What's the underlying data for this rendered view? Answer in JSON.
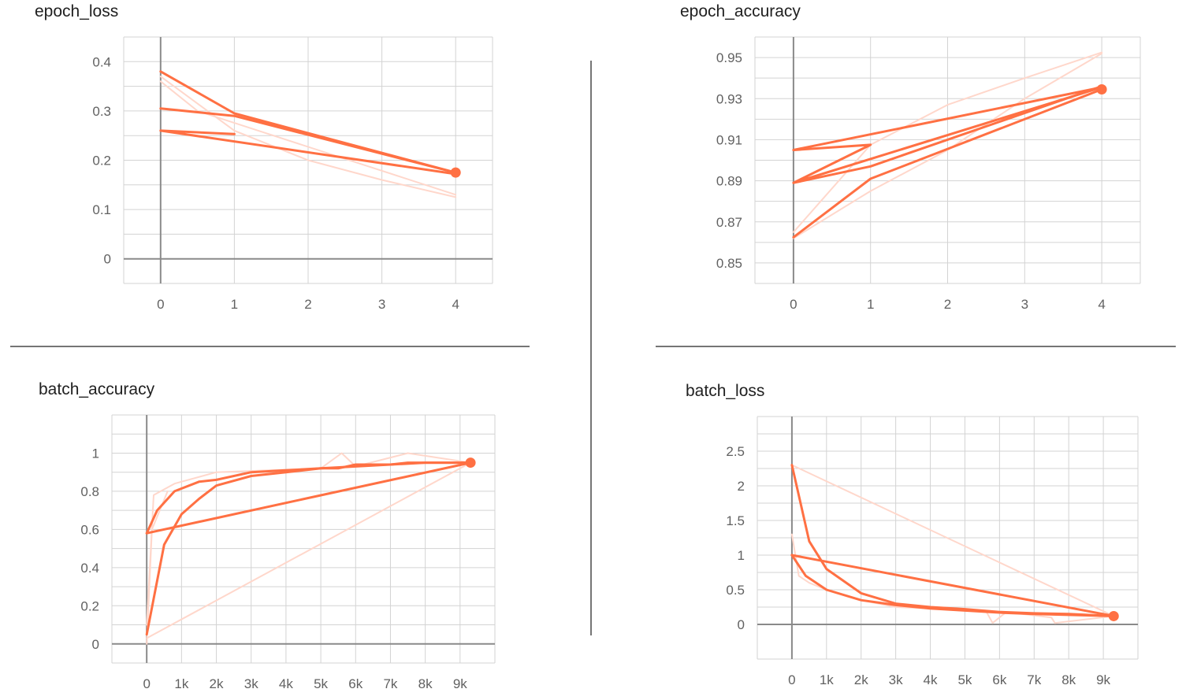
{
  "colors": {
    "accent": "#ff7043",
    "accent_light": "#ffd7cb",
    "grid": "#d3d3d3",
    "axis": "#8a8a8a"
  },
  "chart_data": [
    {
      "id": "epoch_loss",
      "type": "line",
      "title": "epoch_loss",
      "xlim": [
        -0.5,
        4.5
      ],
      "ylim": [
        -0.05,
        0.45
      ],
      "xticks": [
        0,
        1,
        2,
        3,
        4
      ],
      "xtick_labels": [
        "0",
        "1",
        "2",
        "3",
        "4"
      ],
      "yticks": [
        0,
        0.1,
        0.2,
        0.3,
        0.4
      ],
      "ytick_labels": [
        "0",
        "0.1",
        "0.2",
        "0.3",
        "0.4"
      ],
      "minor_yticks": [
        -0.05,
        0.05,
        0.15,
        0.25,
        0.35,
        0.45
      ],
      "grid": true,
      "series": [
        {
          "kind": "smoothed",
          "x": [
            0,
            1,
            4
          ],
          "y": [
            0.38,
            0.295,
            0.175
          ]
        },
        {
          "kind": "smoothed",
          "x": [
            0,
            1,
            4
          ],
          "y": [
            0.305,
            0.29,
            0.175
          ]
        },
        {
          "kind": "smoothed",
          "x": [
            0,
            1,
            0,
            4
          ],
          "y": [
            0.26,
            0.253,
            0.26,
            0.172
          ]
        },
        {
          "kind": "raw",
          "x": [
            0,
            1,
            2,
            3,
            4
          ],
          "y": [
            0.37,
            0.26,
            0.2,
            0.16,
            0.125
          ]
        },
        {
          "kind": "raw",
          "x": [
            0,
            0.5,
            4
          ],
          "y": [
            0.36,
            0.3,
            0.13
          ]
        }
      ],
      "end_marker": {
        "x": 4,
        "y": 0.175
      }
    },
    {
      "id": "epoch_accuracy",
      "type": "line",
      "title": "epoch_accuracy",
      "xlim": [
        -0.5,
        4.5
      ],
      "ylim": [
        0.84,
        0.96
      ],
      "xticks": [
        0,
        1,
        2,
        3,
        4
      ],
      "xtick_labels": [
        "0",
        "1",
        "2",
        "3",
        "4"
      ],
      "yticks": [
        0.85,
        0.87,
        0.89,
        0.91,
        0.93,
        0.95
      ],
      "ytick_labels": [
        "0.85",
        "0.87",
        "0.89",
        "0.91",
        "0.93",
        "0.95"
      ],
      "minor_yticks": [
        0.84,
        0.86,
        0.88,
        0.9,
        0.92,
        0.94,
        0.96
      ],
      "grid": true,
      "series": [
        {
          "kind": "smoothed",
          "x": [
            0,
            1,
            0,
            4
          ],
          "y": [
            0.905,
            0.9075,
            0.889,
            0.9355
          ]
        },
        {
          "kind": "smoothed",
          "x": [
            0,
            4
          ],
          "y": [
            0.905,
            0.9355
          ]
        },
        {
          "kind": "smoothed",
          "x": [
            0,
            1,
            4
          ],
          "y": [
            0.8625,
            0.891,
            0.9345
          ]
        },
        {
          "kind": "smoothed",
          "x": [
            0,
            1,
            4
          ],
          "y": [
            0.889,
            0.897,
            0.936
          ]
        },
        {
          "kind": "raw",
          "x": [
            0,
            1,
            2,
            3,
            4
          ],
          "y": [
            0.865,
            0.9075,
            0.927,
            0.94,
            0.9525
          ]
        },
        {
          "kind": "raw",
          "x": [
            0,
            1,
            2,
            3,
            4
          ],
          "y": [
            0.862,
            0.885,
            0.905,
            0.93,
            0.952
          ]
        }
      ],
      "end_marker": {
        "x": 4,
        "y": 0.9345
      }
    },
    {
      "id": "batch_accuracy",
      "type": "line",
      "title": "batch_accuracy",
      "xlim": [
        -1000,
        10000
      ],
      "ylim": [
        -0.1,
        1.2
      ],
      "xticks": [
        0,
        1000,
        2000,
        3000,
        4000,
        5000,
        6000,
        7000,
        8000,
        9000
      ],
      "xtick_labels": [
        "0",
        "1k",
        "2k",
        "3k",
        "4k",
        "5k",
        "6k",
        "7k",
        "8k",
        "9k"
      ],
      "yticks": [
        0,
        0.2,
        0.4,
        0.6,
        0.8,
        1
      ],
      "ytick_labels": [
        "0",
        "0.2",
        "0.4",
        "0.6",
        "0.8",
        "1"
      ],
      "minor_yticks": [
        -0.1,
        0.1,
        0.3,
        0.5,
        0.7,
        0.9,
        1.1,
        1.2
      ],
      "grid": true,
      "series": [
        {
          "kind": "smoothed",
          "x": [
            0,
            500,
            1000,
            1500,
            2000,
            3000,
            4000,
            5000,
            6000,
            7000,
            7500,
            9300
          ],
          "y": [
            0.05,
            0.52,
            0.68,
            0.76,
            0.83,
            0.88,
            0.9,
            0.92,
            0.93,
            0.94,
            0.95,
            0.95
          ]
        },
        {
          "kind": "smoothed",
          "x": [
            0,
            300,
            800,
            1500,
            2000,
            3000,
            4000,
            5000,
            5500,
            6000,
            7000,
            8000,
            9300
          ],
          "y": [
            0.58,
            0.7,
            0.8,
            0.85,
            0.86,
            0.9,
            0.91,
            0.92,
            0.92,
            0.94,
            0.94,
            0.95,
            0.95
          ]
        },
        {
          "kind": "smoothed",
          "x": [
            0,
            9300
          ],
          "y": [
            0.58,
            0.95
          ]
        },
        {
          "kind": "raw",
          "x": [
            0,
            200,
            800,
            2000,
            3500,
            5000,
            5600,
            6000,
            7500,
            9300
          ],
          "y": [
            0.1,
            0.78,
            0.84,
            0.9,
            0.91,
            0.92,
            1.0,
            0.93,
            1.0,
            0.95
          ]
        },
        {
          "kind": "raw",
          "x": [
            0,
            9300
          ],
          "y": [
            0.03,
            0.95
          ]
        },
        {
          "kind": "raw",
          "x": [
            0,
            150,
            600
          ],
          "y": [
            0.0,
            0.6,
            0.8
          ]
        }
      ],
      "end_marker": {
        "x": 9300,
        "y": 0.95
      }
    },
    {
      "id": "batch_loss",
      "type": "line",
      "title": "batch_loss",
      "xlim": [
        -1000,
        10000
      ],
      "ylim": [
        -0.5,
        3
      ],
      "xticks": [
        0,
        1000,
        2000,
        3000,
        4000,
        5000,
        6000,
        7000,
        8000,
        9000
      ],
      "xtick_labels": [
        "0",
        "1k",
        "2k",
        "3k",
        "4k",
        "5k",
        "6k",
        "7k",
        "8k",
        "9k"
      ],
      "yticks": [
        0,
        0.5,
        1,
        1.5,
        2,
        2.5
      ],
      "ytick_labels": [
        "0",
        "0.5",
        "1",
        "1.5",
        "2",
        "2.5"
      ],
      "minor_yticks": [
        -0.5,
        0.25,
        0.75,
        1.25,
        1.75,
        2.25,
        2.75,
        3
      ],
      "grid": true,
      "series": [
        {
          "kind": "smoothed",
          "x": [
            0,
            500,
            1000,
            2000,
            3000,
            4000,
            5000,
            6000,
            7000,
            8000,
            9300
          ],
          "y": [
            2.3,
            1.2,
            0.8,
            0.45,
            0.3,
            0.25,
            0.22,
            0.18,
            0.16,
            0.15,
            0.12
          ]
        },
        {
          "kind": "smoothed",
          "x": [
            0,
            400,
            1000,
            2000,
            3000,
            4000,
            5000,
            6000,
            7000,
            9300
          ],
          "y": [
            1.0,
            0.7,
            0.5,
            0.35,
            0.28,
            0.23,
            0.2,
            0.17,
            0.15,
            0.12
          ]
        },
        {
          "kind": "smoothed",
          "x": [
            0,
            9300
          ],
          "y": [
            1.0,
            0.12
          ]
        },
        {
          "kind": "raw",
          "x": [
            0,
            9300
          ],
          "y": [
            2.3,
            0.12
          ]
        },
        {
          "kind": "raw",
          "x": [
            0,
            200,
            500,
            1000,
            2000,
            3000,
            5600,
            5800,
            6200,
            7500,
            7600,
            9300
          ],
          "y": [
            1.3,
            0.7,
            0.6,
            0.5,
            0.35,
            0.25,
            0.2,
            0.02,
            0.18,
            0.1,
            0.02,
            0.12
          ]
        }
      ],
      "end_marker": {
        "x": 9300,
        "y": 0.12
      }
    }
  ]
}
